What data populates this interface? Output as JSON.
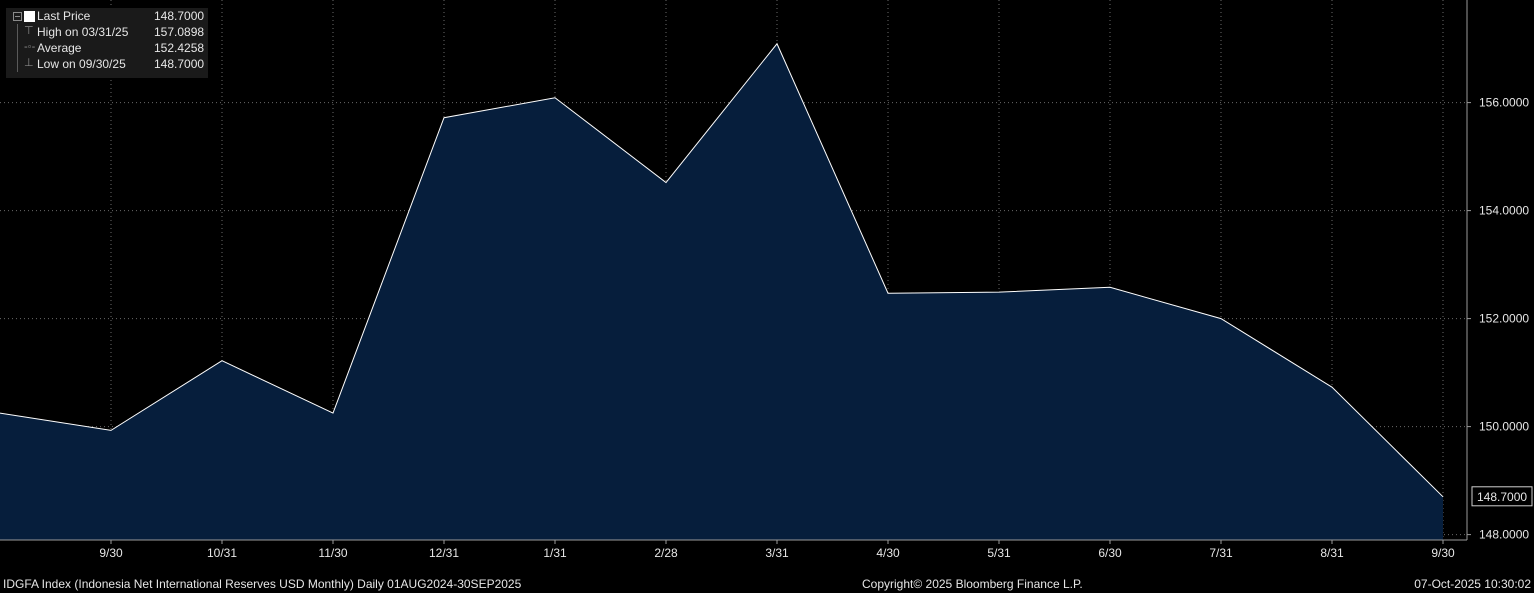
{
  "chart_data": {
    "type": "area",
    "x": [
      "08/30/24",
      "09/30/24",
      "10/31/24",
      "11/30/24",
      "12/31/24",
      "01/31/25",
      "02/28/25",
      "03/31/25",
      "04/30/25",
      "05/31/25",
      "06/30/25",
      "07/31/25",
      "08/31/25",
      "09/30/25"
    ],
    "values": [
      150.25,
      149.93,
      151.22,
      150.25,
      155.72,
      156.09,
      154.52,
      157.0898,
      152.47,
      152.49,
      152.58,
      152.0,
      150.73,
      148.7
    ],
    "categories": [
      "9/30",
      "10/31",
      "11/30",
      "12/31",
      "1/31",
      "2/28",
      "3/31",
      "4/30",
      "5/31",
      "6/30",
      "7/31",
      "8/31",
      "9/30"
    ],
    "yticks": [
      "148.0000",
      "150.0000",
      "152.0000",
      "154.0000",
      "156.0000"
    ],
    "ytick_values": [
      148,
      150,
      152,
      154,
      156
    ],
    "ylim": [
      147.9,
      157.9
    ],
    "last_value_label": "148.7000",
    "grid": true,
    "legend_position": "top-left",
    "colors": {
      "fill": "#061e3c",
      "line": "#ffffff",
      "grid": "#6a6a6a",
      "background": "#000000"
    }
  },
  "legend": {
    "items": [
      {
        "label": "Last Price",
        "value": "148.7000"
      },
      {
        "label": "High on 03/31/25",
        "value": "157.0898"
      },
      {
        "label": "Average",
        "value": "152.4258"
      },
      {
        "label": "Low on 09/30/25",
        "value": "148.7000"
      }
    ]
  },
  "footer": {
    "description": "IDGFA Index (Indonesia Net International Reserves USD Monthly) Daily 01AUG2024-30SEP2025",
    "copyright": "Copyright© 2025 Bloomberg Finance L.P.",
    "timestamp": "07-Oct-2025 10:30:02"
  }
}
